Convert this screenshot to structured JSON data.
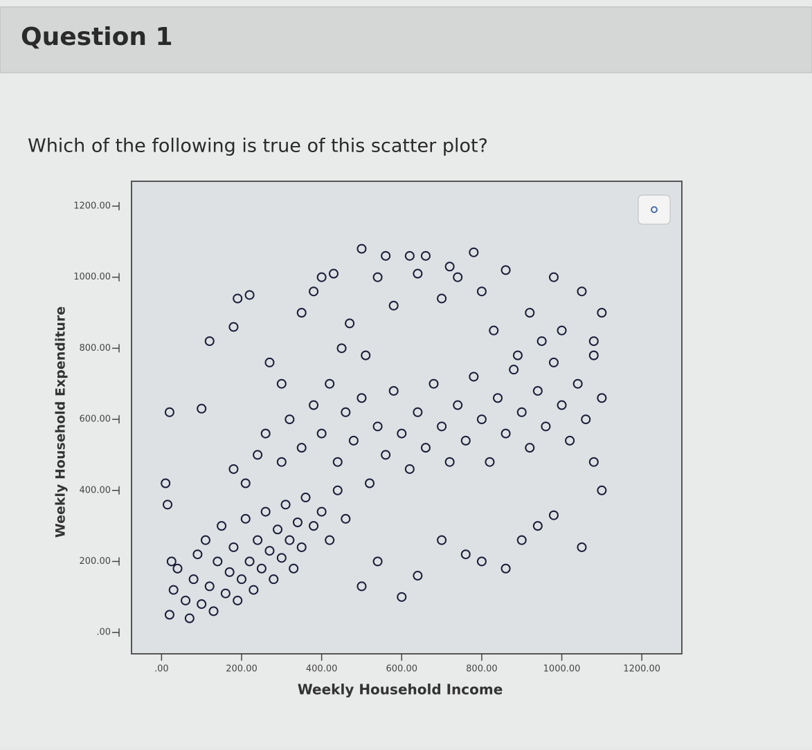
{
  "header": {
    "title": "Question 1"
  },
  "question": "Which of the following is true of this scatter plot?",
  "chart_data": {
    "type": "scatter",
    "xlabel": "Weekly Household Income",
    "ylabel": "Weekly Household Expenditure",
    "color": "#1b1c38",
    "xlim": [
      -75,
      1300
    ],
    "ylim": [
      -60,
      1270
    ],
    "xticks": [
      {
        "value": 0,
        "label": ".00"
      },
      {
        "value": 200,
        "label": "200.00"
      },
      {
        "value": 400,
        "label": "400.00"
      },
      {
        "value": 600,
        "label": "600.00"
      },
      {
        "value": 800,
        "label": "800.00"
      },
      {
        "value": 1000,
        "label": "1000.00"
      },
      {
        "value": 1200,
        "label": "1200.00"
      }
    ],
    "yticks": [
      {
        "value": 0,
        "label": ".00"
      },
      {
        "value": 200,
        "label": "200.00"
      },
      {
        "value": 400,
        "label": "400.00"
      },
      {
        "value": 600,
        "label": "600.00"
      },
      {
        "value": 800,
        "label": "800.00"
      },
      {
        "value": 1000,
        "label": "1000.00"
      },
      {
        "value": 1200,
        "label": "1200.00"
      }
    ],
    "x": [
      20,
      30,
      25,
      40,
      60,
      70,
      80,
      90,
      100,
      110,
      120,
      130,
      140,
      150,
      160,
      170,
      180,
      190,
      200,
      210,
      220,
      230,
      240,
      250,
      260,
      270,
      280,
      290,
      300,
      310,
      320,
      330,
      340,
      350,
      360,
      380,
      400,
      420,
      440,
      460,
      210,
      240,
      260,
      180,
      300,
      320,
      350,
      380,
      400,
      420,
      440,
      460,
      480,
      500,
      520,
      540,
      560,
      580,
      600,
      620,
      640,
      660,
      680,
      700,
      720,
      740,
      760,
      780,
      800,
      820,
      840,
      860,
      880,
      900,
      920,
      940,
      960,
      980,
      1000,
      1020,
      1040,
      1060,
      1080,
      1100,
      10,
      15,
      20,
      100,
      120,
      180,
      190,
      220,
      270,
      300,
      350,
      380,
      400,
      430,
      450,
      470,
      500,
      510,
      540,
      560,
      580,
      620,
      640,
      660,
      700,
      720,
      740,
      780,
      800,
      830,
      860,
      890,
      920,
      950,
      980,
      1000,
      1050,
      1080,
      1100,
      500,
      540,
      600,
      640,
      700,
      760,
      800,
      860,
      900,
      940,
      980,
      1050,
      1100,
      1080
    ],
    "values": [
      50,
      120,
      200,
      180,
      90,
      40,
      150,
      220,
      80,
      260,
      130,
      60,
      200,
      300,
      110,
      170,
      240,
      90,
      150,
      320,
      200,
      120,
      260,
      180,
      340,
      230,
      150,
      290,
      210,
      360,
      260,
      180,
      310,
      240,
      380,
      300,
      340,
      260,
      400,
      320,
      420,
      500,
      560,
      460,
      480,
      600,
      520,
      640,
      560,
      700,
      480,
      620,
      540,
      660,
      420,
      580,
      500,
      680,
      560,
      460,
      620,
      520,
      700,
      580,
      480,
      640,
      540,
      720,
      600,
      480,
      660,
      560,
      740,
      620,
      520,
      680,
      580,
      760,
      640,
      540,
      700,
      600,
      780,
      660,
      420,
      360,
      620,
      630,
      820,
      860,
      940,
      950,
      760,
      700,
      900,
      960,
      1000,
      1010,
      800,
      870,
      1080,
      780,
      1000,
      1060,
      920,
      1060,
      1010,
      1060,
      940,
      1030,
      1000,
      1070,
      960,
      850,
      1020,
      780,
      900,
      820,
      1000,
      850,
      960,
      820,
      900,
      130,
      200,
      100,
      160,
      260,
      220,
      200,
      180,
      260,
      300,
      330,
      240,
      400,
      480
    ]
  }
}
